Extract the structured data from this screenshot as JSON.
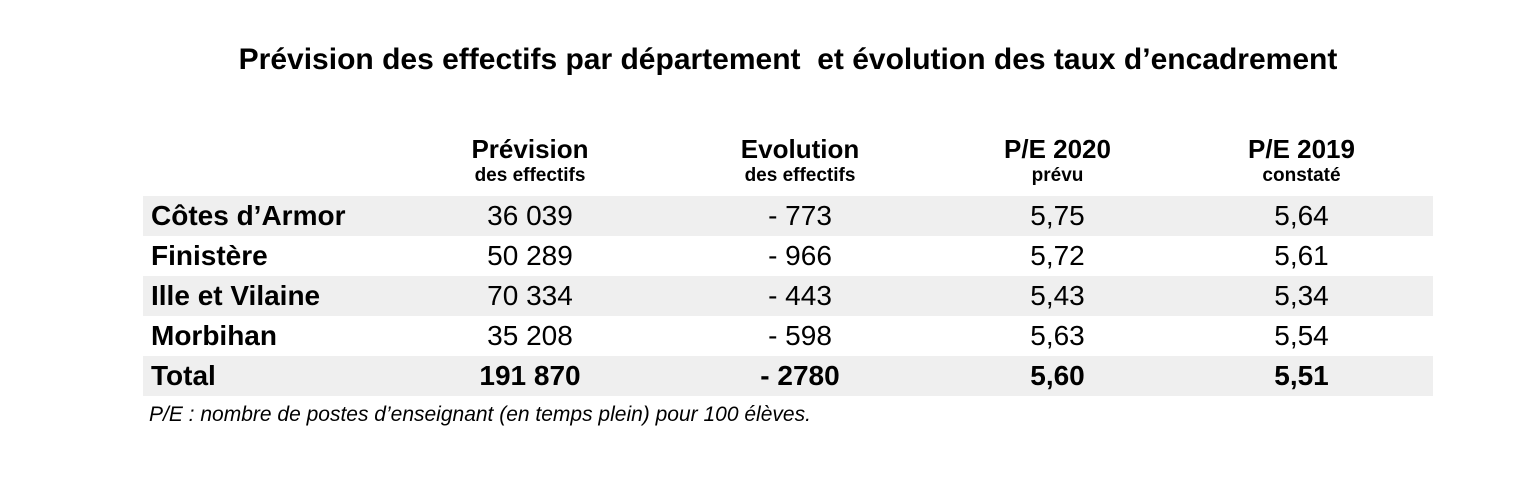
{
  "title": "Prévision des effectifs par département  et évolution des taux d’encadrement",
  "table": {
    "columns": [
      {
        "label": "",
        "sublabel": ""
      },
      {
        "label": "Prévision",
        "sublabel": "des effectifs"
      },
      {
        "label": "Evolution",
        "sublabel": "des effectifs"
      },
      {
        "label": "P/E 2020",
        "sublabel": "prévu"
      },
      {
        "label": "P/E 2019",
        "sublabel": "constaté"
      }
    ],
    "rows": [
      {
        "department": "Côtes d’Armor",
        "prevision": "36 039",
        "evolution": "- 773",
        "pe2020": "5,75",
        "pe2019": "5,64"
      },
      {
        "department": "Finistère",
        "prevision": "50 289",
        "evolution": "- 966",
        "pe2020": "5,72",
        "pe2019": "5,61"
      },
      {
        "department": "Ille et Vilaine",
        "prevision": "70 334",
        "evolution": "- 443",
        "pe2020": "5,43",
        "pe2019": "5,34"
      },
      {
        "department": "Morbihan",
        "prevision": "35 208",
        "evolution": "- 598",
        "pe2020": "5,63",
        "pe2019": "5,54"
      },
      {
        "department": "Total",
        "prevision": "191 870",
        "evolution": "- 2780",
        "pe2020": "5,60",
        "pe2019": "5,51"
      }
    ],
    "stripe_color": "#efefef"
  },
  "footnote": "P/E : nombre de postes d’enseignant (en temps plein) pour 100 élèves."
}
